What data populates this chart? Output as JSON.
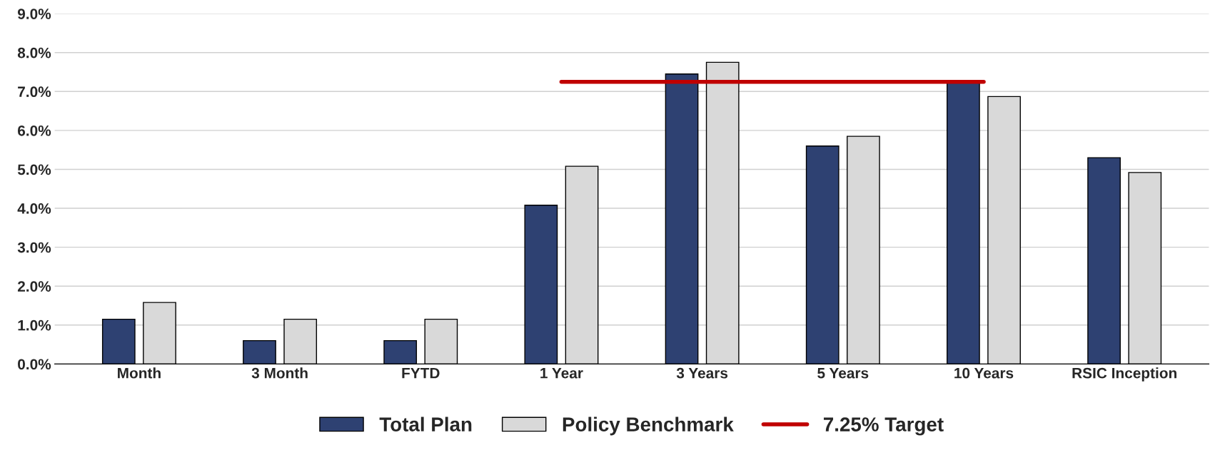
{
  "chart_data": {
    "type": "bar",
    "categories": [
      "Month",
      "3 Month",
      "FYTD",
      "1 Year",
      "3 Years",
      "5 Years",
      "10 Years",
      "RSIC Inception"
    ],
    "series": [
      {
        "name": "Total Plan",
        "color": "#2e4172",
        "values": [
          1.15,
          0.6,
          0.6,
          4.08,
          7.45,
          5.6,
          7.25,
          5.3
        ]
      },
      {
        "name": "Policy Benchmark",
        "color": "#d9d9d9",
        "values": [
          1.58,
          1.15,
          1.15,
          5.08,
          7.75,
          5.85,
          6.87,
          4.92
        ]
      },
      {
        "name": "7.25% Target",
        "type": "line",
        "color": "#c00000",
        "marker": "none",
        "values": [
          null,
          null,
          null,
          7.25,
          7.25,
          7.25,
          7.25,
          null
        ]
      }
    ],
    "ylim": [
      0,
      9
    ],
    "yticks": [
      {
        "value": 0,
        "label": "0.0%"
      },
      {
        "value": 1,
        "label": "1.0%"
      },
      {
        "value": 2,
        "label": "2.0%"
      },
      {
        "value": 3,
        "label": "3.0%"
      },
      {
        "value": 4,
        "label": "4.0%"
      },
      {
        "value": 5,
        "label": "5.0%"
      },
      {
        "value": 6,
        "label": "6.0%"
      },
      {
        "value": 7,
        "label": "7.0%"
      },
      {
        "value": 8,
        "label": "8.0%"
      },
      {
        "value": 9,
        "label": "9.0%"
      }
    ],
    "grid": "y",
    "legend": "bottom"
  }
}
